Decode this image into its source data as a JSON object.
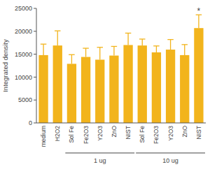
{
  "chart_data": {
    "type": "bar",
    "y_label": "Integrated density",
    "categories": [
      "medium",
      "H2O2",
      "Sol Fe",
      "Fe2O3",
      "Y2O3",
      "ZnO",
      "NIST",
      "Sol Fe",
      "Fe2O3",
      "Y2O3",
      "ZnO",
      "NIST"
    ],
    "values": [
      14800,
      16900,
      12900,
      14400,
      13800,
      14700,
      17000,
      16900,
      15400,
      16000,
      14800,
      20700
    ],
    "errors": [
      2400,
      3200,
      2000,
      1900,
      2700,
      2000,
      2600,
      1400,
      1400,
      2200,
      2300,
      2900
    ],
    "color": "#f2b41c",
    "ylim": [
      0,
      25000
    ],
    "yticks": [
      0,
      5000,
      10000,
      15000,
      20000,
      25000
    ],
    "grid": false,
    "groups": [
      {
        "label": "1 ug",
        "start": 2,
        "end": 6
      },
      {
        "label": "10 ug",
        "start": 7,
        "end": 11
      }
    ],
    "annotations": [
      {
        "text": "*",
        "index": 11
      }
    ]
  }
}
